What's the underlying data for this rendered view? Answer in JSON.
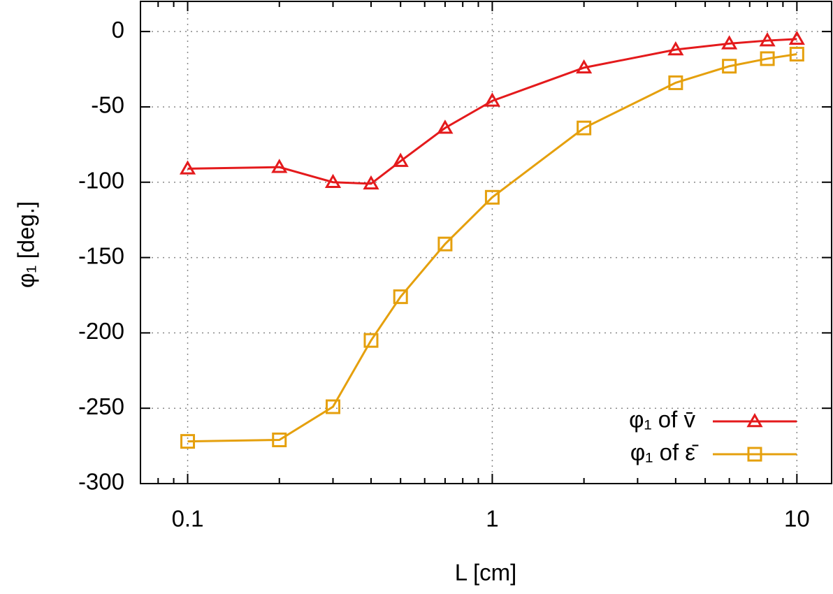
{
  "chart_data": {
    "type": "line",
    "x_label": "L [cm]",
    "y_label": "φ₁ [deg.]",
    "x": [
      0.1,
      0.2,
      0.3,
      0.4,
      0.5,
      0.7,
      1,
      2,
      4,
      6,
      8,
      10
    ],
    "series": [
      {
        "name": "φ₁ of v̄",
        "color": "#e41a1c",
        "marker": "triangle",
        "values": [
          -91,
          -90,
          -100,
          -101,
          -86,
          -64,
          -46,
          -24,
          -12,
          -8,
          -6,
          -5
        ]
      },
      {
        "name": "φ₁ of ε̄",
        "color": "#e5a00d",
        "marker": "square",
        "values": [
          -272,
          -271,
          -249,
          -205,
          -176,
          -141,
          -110,
          -64,
          -34,
          -23,
          -18,
          -15
        ]
      }
    ],
    "xlim": [
      0.07,
      13
    ],
    "x_log": true,
    "xticks": [
      0.1,
      1,
      10
    ],
    "ylim": [
      -300,
      20
    ],
    "yticks": [
      -300,
      -250,
      -200,
      -150,
      -100,
      -50,
      0
    ],
    "grid": true,
    "legend": "bottom right"
  }
}
